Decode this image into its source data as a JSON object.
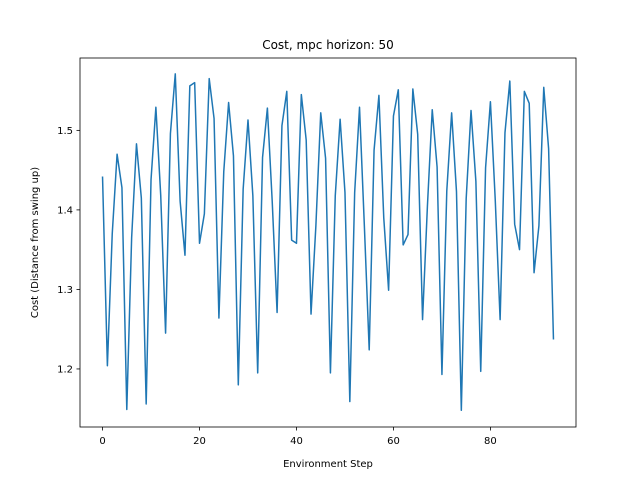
{
  "chart_data": {
    "type": "line",
    "title": "Cost, mpc horizon: 50",
    "xlabel": "Environment Step",
    "ylabel": "Cost (Distance from swing up)",
    "xlim": [
      -4.65,
      97.65
    ],
    "ylim": [
      1.127,
      1.591
    ],
    "xticks": [
      0,
      20,
      40,
      60,
      80
    ],
    "yticks": [
      1.2,
      1.3,
      1.4,
      1.5
    ],
    "xtick_labels": [
      "0",
      "20",
      "40",
      "60",
      "80"
    ],
    "ytick_labels": [
      "1.2",
      "1.3",
      "1.4",
      "1.5"
    ],
    "grid": false,
    "legend": "none",
    "series": [
      {
        "color": "#1f77b4",
        "x": [
          0,
          1,
          2,
          3,
          4,
          5,
          6,
          7,
          8,
          9,
          10,
          11,
          12,
          13,
          14,
          15,
          16,
          17,
          18,
          19,
          20,
          21,
          22,
          23,
          24,
          25,
          26,
          27,
          28,
          29,
          30,
          31,
          32,
          33,
          34,
          35,
          36,
          37,
          38,
          39,
          40,
          41,
          42,
          43,
          44,
          45,
          46,
          47,
          48,
          49,
          50,
          51,
          52,
          53,
          54,
          55,
          56,
          57,
          58,
          59,
          60,
          61,
          62,
          63,
          64,
          65,
          66,
          67,
          68,
          69,
          70,
          71,
          72,
          73,
          74,
          75,
          76,
          77,
          78,
          79,
          80,
          81,
          82,
          83,
          84,
          85,
          86,
          87,
          88,
          89,
          90,
          91,
          92,
          93
        ],
        "values": [
          1.441,
          1.204,
          1.37,
          1.47,
          1.428,
          1.149,
          1.365,
          1.483,
          1.415,
          1.156,
          1.438,
          1.529,
          1.418,
          1.245,
          1.496,
          1.571,
          1.411,
          1.343,
          1.556,
          1.56,
          1.358,
          1.395,
          1.565,
          1.515,
          1.264,
          1.448,
          1.535,
          1.468,
          1.18,
          1.426,
          1.513,
          1.418,
          1.195,
          1.466,
          1.528,
          1.41,
          1.271,
          1.506,
          1.549,
          1.362,
          1.358,
          1.545,
          1.488,
          1.269,
          1.38,
          1.522,
          1.465,
          1.195,
          1.418,
          1.514,
          1.422,
          1.159,
          1.422,
          1.529,
          1.38,
          1.224,
          1.475,
          1.544,
          1.39,
          1.299,
          1.518,
          1.551,
          1.356,
          1.369,
          1.552,
          1.495,
          1.262,
          1.404,
          1.526,
          1.454,
          1.193,
          1.424,
          1.522,
          1.423,
          1.148,
          1.414,
          1.525,
          1.436,
          1.197,
          1.453,
          1.536,
          1.412,
          1.262,
          1.497,
          1.562,
          1.382,
          1.35,
          1.549,
          1.534,
          1.321,
          1.38,
          1.554,
          1.477,
          1.238
        ]
      }
    ]
  }
}
